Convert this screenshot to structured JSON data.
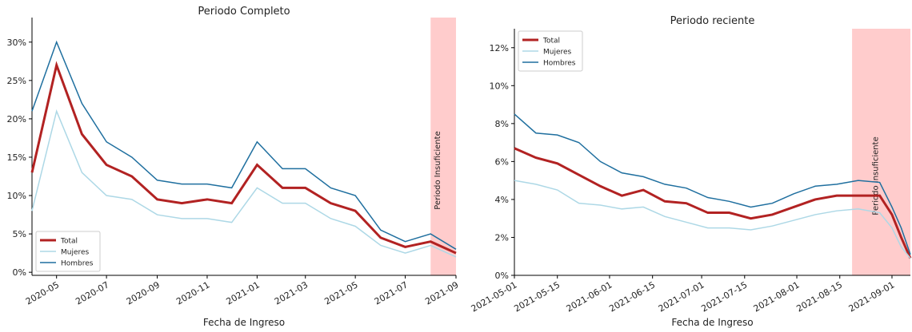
{
  "chart_data": [
    {
      "type": "line",
      "title": "Periodo Completo",
      "x_label": "Fecha de Ingreso",
      "x": [
        "2020-04",
        "2020-05",
        "2020-06",
        "2020-07",
        "2020-08",
        "2020-09",
        "2020-10",
        "2020-11",
        "2020-12",
        "2021-01",
        "2021-02",
        "2021-03",
        "2021-04",
        "2021-05",
        "2021-06",
        "2021-07",
        "2021-08",
        "2021-09"
      ],
      "series": [
        {
          "name": "Total",
          "color": "#b22222",
          "values": [
            13,
            27,
            18,
            14,
            12.5,
            9.5,
            9,
            9.5,
            9,
            14,
            11,
            11,
            9,
            8,
            4.5,
            3.3,
            4,
            2.5
          ]
        },
        {
          "name": "Mujeres",
          "color": "#add8e6",
          "values": [
            8,
            21,
            13,
            10,
            9.5,
            7.5,
            7,
            7,
            6.5,
            11,
            9,
            9,
            7,
            6,
            3.5,
            2.5,
            3.5,
            2
          ]
        },
        {
          "name": "Hombres",
          "color": "#1f6f9f",
          "values": [
            21,
            30,
            22,
            17,
            15,
            12,
            11.5,
            11.5,
            11,
            17,
            13.5,
            13.5,
            11,
            10,
            5.5,
            4,
            5,
            3
          ]
        }
      ],
      "xlim": [
        "2020-04",
        "2021-09"
      ],
      "xticks": [
        "2020-05",
        "2020-07",
        "2020-09",
        "2020-11",
        "2021-01",
        "2021-03",
        "2021-05",
        "2021-07",
        "2021-09"
      ],
      "ylim": [
        -0.4,
        33.2
      ],
      "yticks": [
        {
          "value": 0,
          "label": "0%"
        },
        {
          "value": 5,
          "label": "5%"
        },
        {
          "value": 10,
          "label": "10%"
        },
        {
          "value": 15,
          "label": "15%"
        },
        {
          "value": 20,
          "label": "20%"
        },
        {
          "value": 25,
          "label": "25%"
        },
        {
          "value": 30,
          "label": "30%"
        }
      ],
      "shade": {
        "label": "Periodo Insuficiente",
        "color": "#ffcccc",
        "span": [
          "2021-08",
          "2021-09"
        ]
      },
      "legend": "lower left"
    },
    {
      "type": "line",
      "title": "Periodo reciente",
      "x_label": "Fecha de Ingreso",
      "x": [
        "2021-05-01",
        "2021-05-08",
        "2021-05-15",
        "2021-05-22",
        "2021-05-29",
        "2021-06-05",
        "2021-06-12",
        "2021-06-19",
        "2021-06-26",
        "2021-07-03",
        "2021-07-10",
        "2021-07-17",
        "2021-07-24",
        "2021-07-31",
        "2021-08-07",
        "2021-08-14",
        "2021-08-21",
        "2021-08-28",
        "2021-09-01",
        "2021-09-04",
        "2021-09-07"
      ],
      "series": [
        {
          "name": "Total",
          "color": "#b22222",
          "values": [
            6.7,
            6.2,
            5.9,
            5.3,
            4.7,
            4.2,
            4.5,
            3.9,
            3.8,
            3.3,
            3.3,
            3.0,
            3.2,
            3.6,
            4.0,
            4.2,
            4.2,
            4.2,
            3.2,
            2.0,
            0.9
          ]
        },
        {
          "name": "Mujeres",
          "color": "#add8e6",
          "values": [
            5.0,
            4.8,
            4.5,
            3.8,
            3.7,
            3.5,
            3.6,
            3.1,
            2.8,
            2.5,
            2.5,
            2.4,
            2.6,
            2.9,
            3.2,
            3.4,
            3.5,
            3.3,
            2.5,
            1.5,
            0.9
          ]
        },
        {
          "name": "Hombres",
          "color": "#1f6f9f",
          "values": [
            8.5,
            7.5,
            7.4,
            7.0,
            6.0,
            5.4,
            5.2,
            4.8,
            4.6,
            4.1,
            3.9,
            3.6,
            3.8,
            4.3,
            4.7,
            4.8,
            5.0,
            4.9,
            3.6,
            2.5,
            1.1
          ]
        }
      ],
      "xlim": [
        "2021-05-01",
        "2021-09-07"
      ],
      "xticks": [
        "2021-05-01",
        "2021-05-15",
        "2021-06-01",
        "2021-06-15",
        "2021-07-01",
        "2021-07-15",
        "2021-08-01",
        "2021-08-15",
        "2021-09-01"
      ],
      "ylim": [
        0,
        13
      ],
      "yticks": [
        {
          "value": 0,
          "label": "0%"
        },
        {
          "value": 2,
          "label": "2%"
        },
        {
          "value": 4,
          "label": "4%"
        },
        {
          "value": 6,
          "label": "6%"
        },
        {
          "value": 8,
          "label": "8%"
        },
        {
          "value": 10,
          "label": "10%"
        },
        {
          "value": 12,
          "label": "12%"
        }
      ],
      "shade": {
        "label": "Periodo Insuficiente",
        "color": "#ffcccc",
        "span": [
          "2021-08-19",
          "2021-09-07"
        ]
      },
      "legend": "upper left"
    }
  ]
}
